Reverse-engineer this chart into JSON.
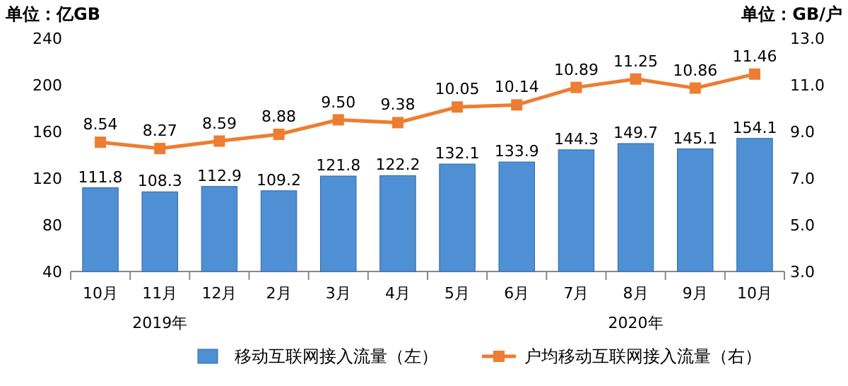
{
  "chart_data": {
    "type": "bar",
    "ylabel": "单位：亿GB",
    "y2label": "单位：GB/户",
    "categories": [
      "10月",
      "11月",
      "12月",
      "2月",
      "3月",
      "4月",
      "5月",
      "6月",
      "7月",
      "8月",
      "9月",
      "10月"
    ],
    "series": [
      {
        "name": "移动互联网接入流量（左）",
        "color": "#4f8fd3",
        "values": [
          111.8,
          108.3,
          112.9,
          109.2,
          121.8,
          122.2,
          132.1,
          133.9,
          144.3,
          149.7,
          145.1,
          154.1
        ]
      },
      {
        "name": "户均移动互联网接入流量（右）",
        "type": "line",
        "axis": "y2",
        "color": "#ed7d31",
        "marker": "square",
        "values": [
          8.54,
          8.27,
          8.59,
          8.88,
          9.5,
          9.38,
          10.05,
          10.14,
          10.89,
          11.25,
          10.86,
          11.46
        ],
        "value_labels": [
          "8.54",
          "8.27",
          "8.59",
          "8.88",
          "9.50",
          "9.38",
          "10.05",
          "10.14",
          "10.89",
          "11.25",
          "10.86",
          "11.46"
        ]
      }
    ],
    "ylim": [
      40,
      240
    ],
    "yticks": [
      40,
      80,
      120,
      160,
      200,
      240
    ],
    "y2lim": [
      3,
      13
    ],
    "y2ticks": [
      {
        "value": 3,
        "label": "3.0"
      },
      {
        "value": 5,
        "label": "5.0"
      },
      {
        "value": 7,
        "label": "7.0"
      },
      {
        "value": 9,
        "label": "9.0"
      },
      {
        "value": 11,
        "label": "11.0"
      },
      {
        "value": 13,
        "label": "13.0"
      }
    ],
    "data_labels": true,
    "legend": "bottom",
    "grid": false,
    "annotations": [
      "2019年",
      "2020年"
    ]
  }
}
